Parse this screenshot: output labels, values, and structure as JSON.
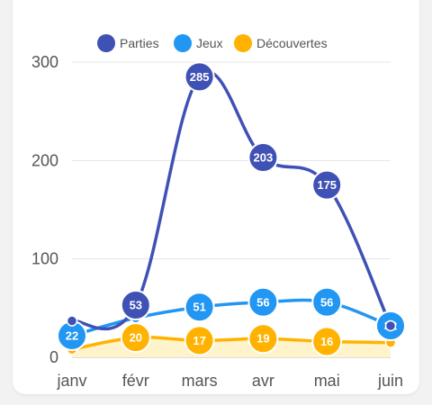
{
  "chart_data": {
    "type": "line",
    "categories": [
      "janv",
      "févr",
      "mars",
      "avr",
      "mai",
      "juin"
    ],
    "series": [
      {
        "name": "Parties",
        "color": "#3f51b5",
        "values": [
          37,
          53,
          285,
          203,
          175,
          32
        ],
        "labels": [
          false,
          true,
          true,
          true,
          true,
          false
        ]
      },
      {
        "name": "Jeux",
        "color": "#2196f3",
        "values": [
          22,
          40,
          51,
          56,
          56,
          32
        ],
        "labels": [
          true,
          false,
          true,
          true,
          true,
          true
        ]
      },
      {
        "name": "Découvertes",
        "color": "#ffb300",
        "values": [
          8,
          20,
          17,
          19,
          16,
          15
        ],
        "labels": [
          false,
          true,
          true,
          true,
          true,
          false
        ],
        "fill": "#fff3cc"
      }
    ],
    "y_ticks": [
      0,
      100,
      200,
      300
    ],
    "ylim": [
      0,
      300
    ],
    "grid": true,
    "legend": "top"
  }
}
